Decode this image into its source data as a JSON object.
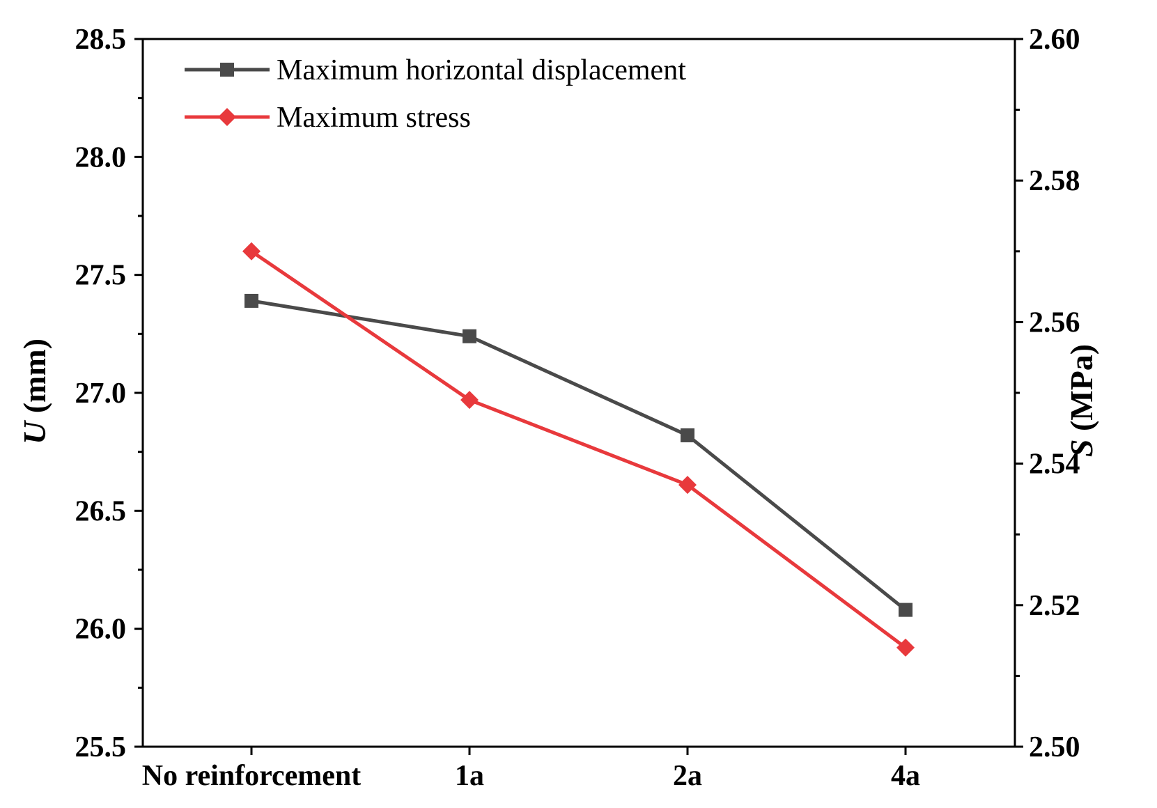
{
  "chart_data": {
    "type": "line",
    "categories": [
      "No reinforcement",
      "1a",
      "2a",
      "4a"
    ],
    "y_left": {
      "label_var": "U",
      "label_unit": " (mm)",
      "ylim": [
        25.5,
        28.5
      ],
      "ticks": [
        "25.5",
        "26.0",
        "26.5",
        "27.0",
        "27.5",
        "28.0",
        "28.5"
      ],
      "tick_values": [
        25.5,
        26.0,
        26.5,
        27.0,
        27.5,
        28.0,
        28.5
      ]
    },
    "y_right": {
      "label_var": "S",
      "label_unit": " (MPa)",
      "ylim": [
        2.5,
        2.6
      ],
      "ticks": [
        "2.50",
        "2.52",
        "2.54",
        "2.56",
        "2.58",
        "2.60"
      ],
      "tick_values": [
        2.5,
        2.52,
        2.54,
        2.56,
        2.58,
        2.6
      ]
    },
    "series": [
      {
        "name": "Maximum horizontal displacement",
        "axis": "left",
        "marker": "square",
        "color": "#4a4a4a",
        "values": [
          27.39,
          27.24,
          26.82,
          26.08
        ]
      },
      {
        "name": "Maximum stress",
        "axis": "right",
        "marker": "diamond",
        "color": "#e8393c",
        "values": [
          2.57,
          2.549,
          2.537,
          2.514
        ]
      }
    ],
    "legend_position": "top-left",
    "grid": false
  }
}
